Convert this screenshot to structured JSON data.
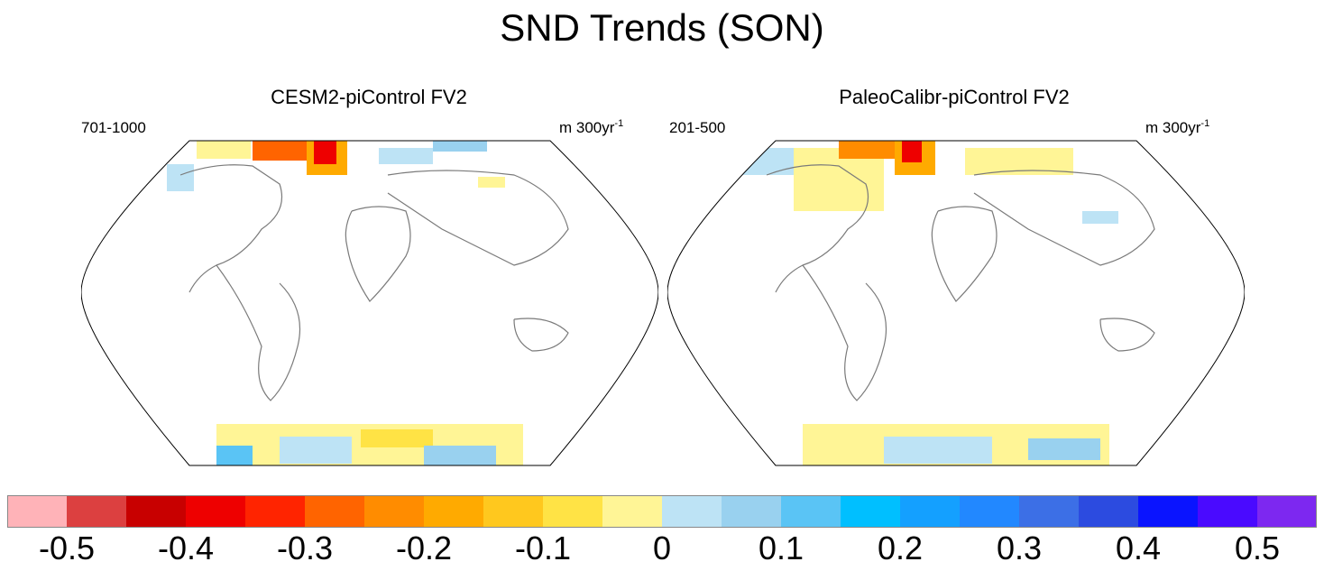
{
  "title": "SND Trends (SON)",
  "panels": [
    {
      "title": "CESM2-piControl FV2",
      "period": "701-1000",
      "units": "m 300yr",
      "units_exp": "-1"
    },
    {
      "title": "PaleoCalibr-piControl FV2",
      "period": "201-500",
      "units": "m 300yr",
      "units_exp": "-1"
    }
  ],
  "colorbar": {
    "colors": [
      "#ffb3b8",
      "#dc4040",
      "#c80000",
      "#ee0000",
      "#ff2400",
      "#ff6400",
      "#ff8c00",
      "#ffaa00",
      "#ffc81e",
      "#ffe345",
      "#fff596",
      "#bde3f5",
      "#99d1ef",
      "#5ac4f5",
      "#00bfff",
      "#14a0ff",
      "#2288ff",
      "#3c6fe6",
      "#2c4be0",
      "#0a14ff",
      "#4a0aff",
      "#7d28f0"
    ],
    "labels": [
      "-0.5",
      "-0.4",
      "-0.3",
      "-0.2",
      "-0.1",
      "0",
      "0.1",
      "0.2",
      "0.3",
      "0.4",
      "0.5"
    ]
  }
}
